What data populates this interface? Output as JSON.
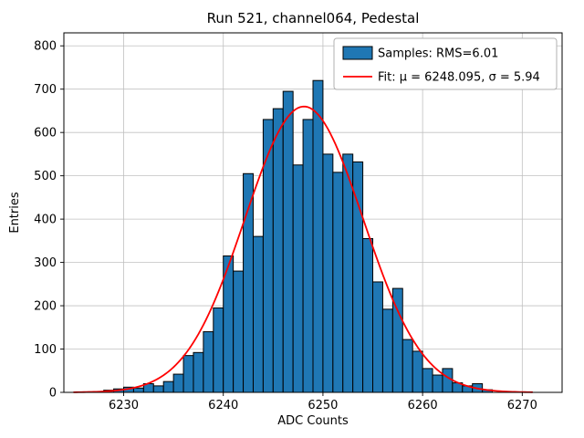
{
  "chart_data": {
    "type": "bar",
    "title": "Run 521, channel064, Pedestal",
    "xlabel": "ADC Counts",
    "ylabel": "Entries",
    "xlim": [
      6224,
      6274
    ],
    "ylim": [
      0,
      830
    ],
    "xticks": [
      6230,
      6240,
      6250,
      6260,
      6270
    ],
    "yticks": [
      0,
      100,
      200,
      300,
      400,
      500,
      600,
      700,
      800
    ],
    "grid": true,
    "legend_position": "upper right",
    "bin_width": 1,
    "bin_left_edges": [
      6228,
      6229,
      6230,
      6231,
      6232,
      6233,
      6234,
      6235,
      6236,
      6237,
      6238,
      6239,
      6240,
      6241,
      6242,
      6243,
      6244,
      6245,
      6246,
      6247,
      6248,
      6249,
      6250,
      6251,
      6252,
      6253,
      6254,
      6255,
      6256,
      6257,
      6258,
      6259,
      6260,
      6261,
      6262,
      6263,
      6264,
      6265,
      6266
    ],
    "counts": [
      5,
      8,
      12,
      10,
      20,
      15,
      25,
      42,
      85,
      92,
      140,
      195,
      315,
      280,
      505,
      360,
      630,
      655,
      695,
      525,
      630,
      720,
      550,
      508,
      550,
      532,
      355,
      255,
      192,
      240,
      122,
      95,
      55,
      40,
      55,
      22,
      15,
      20,
      6
    ],
    "fit": {
      "mu": 6248.095,
      "sigma": 5.94,
      "amplitude": 660
    },
    "legend_labels": [
      "Samples: RMS=6.01",
      "Fit: μ = 6248.095, σ = 5.94"
    ],
    "samples_rms": 6.01,
    "colors": {
      "bar_fill": "#1f77b4",
      "bar_edge": "#000000",
      "fit_line": "#ff0000",
      "grid": "#c0c0c0",
      "axes": "#000000",
      "legend_border": "#b0b0b0",
      "background": "#ffffff"
    }
  }
}
